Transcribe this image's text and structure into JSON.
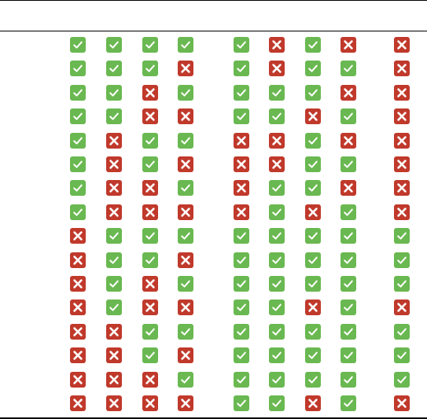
{
  "colors": {
    "pass": "#6ab851",
    "fail": "#c0392b",
    "mark": "#ffffff",
    "rule": "#000000"
  },
  "icons": {
    "pass": "check-icon",
    "fail": "cross-icon"
  },
  "matrix": {
    "groups": [
      4,
      4,
      1
    ],
    "rows": [
      [
        "pass",
        "pass",
        "pass",
        "pass",
        "pass",
        "fail",
        "pass",
        "fail",
        "fail"
      ],
      [
        "pass",
        "pass",
        "pass",
        "fail",
        "pass",
        "fail",
        "pass",
        "pass",
        "fail"
      ],
      [
        "pass",
        "pass",
        "fail",
        "pass",
        "pass",
        "pass",
        "pass",
        "fail",
        "fail"
      ],
      [
        "pass",
        "pass",
        "fail",
        "fail",
        "pass",
        "pass",
        "fail",
        "pass",
        "fail"
      ],
      [
        "pass",
        "fail",
        "pass",
        "pass",
        "fail",
        "fail",
        "pass",
        "fail",
        "fail"
      ],
      [
        "pass",
        "fail",
        "pass",
        "fail",
        "fail",
        "fail",
        "pass",
        "pass",
        "fail"
      ],
      [
        "pass",
        "fail",
        "fail",
        "pass",
        "fail",
        "pass",
        "pass",
        "fail",
        "fail"
      ],
      [
        "pass",
        "fail",
        "fail",
        "fail",
        "fail",
        "pass",
        "fail",
        "pass",
        "fail"
      ],
      [
        "fail",
        "pass",
        "pass",
        "pass",
        "pass",
        "pass",
        "pass",
        "pass",
        "pass"
      ],
      [
        "fail",
        "pass",
        "pass",
        "fail",
        "pass",
        "pass",
        "pass",
        "pass",
        "pass"
      ],
      [
        "fail",
        "pass",
        "fail",
        "pass",
        "pass",
        "pass",
        "pass",
        "pass",
        "pass"
      ],
      [
        "fail",
        "pass",
        "fail",
        "fail",
        "pass",
        "pass",
        "fail",
        "pass",
        "fail"
      ],
      [
        "fail",
        "fail",
        "pass",
        "pass",
        "pass",
        "pass",
        "pass",
        "pass",
        "pass"
      ],
      [
        "fail",
        "fail",
        "pass",
        "fail",
        "pass",
        "pass",
        "pass",
        "pass",
        "pass"
      ],
      [
        "fail",
        "fail",
        "fail",
        "pass",
        "pass",
        "pass",
        "pass",
        "pass",
        "pass"
      ],
      [
        "fail",
        "fail",
        "fail",
        "fail",
        "pass",
        "pass",
        "fail",
        "pass",
        "fail"
      ]
    ]
  }
}
